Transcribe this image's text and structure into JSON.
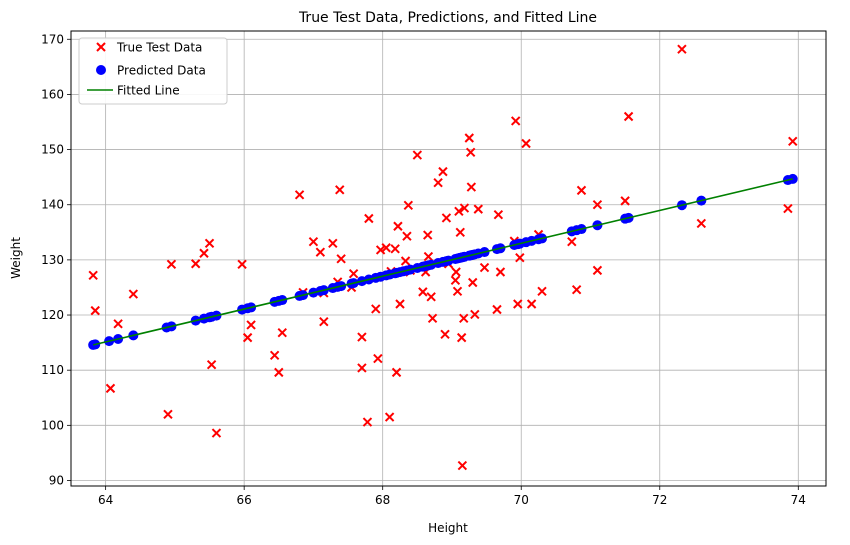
{
  "chart_data": {
    "type": "scatter",
    "title": "True Test Data, Predictions, and Fitted Line",
    "xlabel": "Height",
    "ylabel": "Weight",
    "xlim": [
      63.5,
      74.4
    ],
    "ylim": [
      89,
      171.5
    ],
    "xticks": [
      64,
      66,
      68,
      70,
      72,
      74
    ],
    "yticks": [
      90,
      100,
      110,
      120,
      130,
      140,
      150,
      160,
      170
    ],
    "grid": true,
    "legend_position": "upper-left",
    "legend": [
      {
        "label": "True Test Data",
        "marker": "x",
        "color": "#ff0000"
      },
      {
        "label": "Predicted Data",
        "marker": "circle",
        "color": "#0000ff"
      },
      {
        "label": "Fitted Line",
        "marker": "line",
        "color": "#008000"
      }
    ],
    "series": [
      {
        "name": "True Test Data",
        "kind": "x-marker",
        "color": "#ff0000",
        "points": [
          [
            63.82,
            127.2
          ],
          [
            63.85,
            120.8
          ],
          [
            64.07,
            106.7
          ],
          [
            64.18,
            118.4
          ],
          [
            64.4,
            123.8
          ],
          [
            64.9,
            102.0
          ],
          [
            64.95,
            129.2
          ],
          [
            65.3,
            129.3
          ],
          [
            65.42,
            131.2
          ],
          [
            65.5,
            133.0
          ],
          [
            65.53,
            111.0
          ],
          [
            65.6,
            98.6
          ],
          [
            65.97,
            129.2
          ],
          [
            66.05,
            115.9
          ],
          [
            66.1,
            118.2
          ],
          [
            66.44,
            112.7
          ],
          [
            66.5,
            109.6
          ],
          [
            66.55,
            116.8
          ],
          [
            66.8,
            141.8
          ],
          [
            66.85,
            124.1
          ],
          [
            67.0,
            133.3
          ],
          [
            67.1,
            131.4
          ],
          [
            67.15,
            118.8
          ],
          [
            67.15,
            124.0
          ],
          [
            67.28,
            133.0
          ],
          [
            67.35,
            126.0
          ],
          [
            67.38,
            142.7
          ],
          [
            67.4,
            130.2
          ],
          [
            67.55,
            125.0
          ],
          [
            67.58,
            127.5
          ],
          [
            67.7,
            116.0
          ],
          [
            67.7,
            110.4
          ],
          [
            67.78,
            100.6
          ],
          [
            67.8,
            137.5
          ],
          [
            67.9,
            121.1
          ],
          [
            67.93,
            112.1
          ],
          [
            67.97,
            131.8
          ],
          [
            68.05,
            132.2
          ],
          [
            68.1,
            101.5
          ],
          [
            68.12,
            127.9
          ],
          [
            68.18,
            132.0
          ],
          [
            68.2,
            109.6
          ],
          [
            68.22,
            136.1
          ],
          [
            68.25,
            122.0
          ],
          [
            68.3,
            127.8
          ],
          [
            68.33,
            129.8
          ],
          [
            68.35,
            134.3
          ],
          [
            68.37,
            139.9
          ],
          [
            68.4,
            128.1
          ],
          [
            68.5,
            149.0
          ],
          [
            68.58,
            124.2
          ],
          [
            68.62,
            127.8
          ],
          [
            68.65,
            134.5
          ],
          [
            68.66,
            130.6
          ],
          [
            68.7,
            123.3
          ],
          [
            68.72,
            119.4
          ],
          [
            68.8,
            144.0
          ],
          [
            68.87,
            146.0
          ],
          [
            68.9,
            116.5
          ],
          [
            68.92,
            137.6
          ],
          [
            68.95,
            129.3
          ],
          [
            69.05,
            126.3
          ],
          [
            69.06,
            127.8
          ],
          [
            69.08,
            124.3
          ],
          [
            69.1,
            138.8
          ],
          [
            69.12,
            135.0
          ],
          [
            69.14,
            115.9
          ],
          [
            69.15,
            92.7
          ],
          [
            69.17,
            119.4
          ],
          [
            69.18,
            139.4
          ],
          [
            69.25,
            152.1
          ],
          [
            69.27,
            149.5
          ],
          [
            69.28,
            143.2
          ],
          [
            69.3,
            125.9
          ],
          [
            69.33,
            120.1
          ],
          [
            69.38,
            139.2
          ],
          [
            69.47,
            128.6
          ],
          [
            69.65,
            121.0
          ],
          [
            69.67,
            138.2
          ],
          [
            69.7,
            127.8
          ],
          [
            69.9,
            133.4
          ],
          [
            69.92,
            155.2
          ],
          [
            69.95,
            122.0
          ],
          [
            69.98,
            130.4
          ],
          [
            70.07,
            151.1
          ],
          [
            70.15,
            122.0
          ],
          [
            70.25,
            134.6
          ],
          [
            70.3,
            124.3
          ],
          [
            70.73,
            133.3
          ],
          [
            70.8,
            124.6
          ],
          [
            70.87,
            142.6
          ],
          [
            71.1,
            128.1
          ],
          [
            71.1,
            140.0
          ],
          [
            71.5,
            140.7
          ],
          [
            71.55,
            156.0
          ],
          [
            72.32,
            168.2
          ],
          [
            72.6,
            136.6
          ],
          [
            73.85,
            139.3
          ],
          [
            73.92,
            151.5
          ]
        ]
      },
      {
        "name": "Predicted Data",
        "kind": "circle",
        "color": "#0000ff",
        "x": [
          63.82,
          63.85,
          64.05,
          64.18,
          64.4,
          64.88,
          64.95,
          65.3,
          65.42,
          65.5,
          65.53,
          65.6,
          65.97,
          66.05,
          66.1,
          66.44,
          66.5,
          66.55,
          66.8,
          66.85,
          67.0,
          67.1,
          67.15,
          67.28,
          67.35,
          67.4,
          67.55,
          67.58,
          67.7,
          67.8,
          67.9,
          67.97,
          68.05,
          68.1,
          68.18,
          68.2,
          68.25,
          68.3,
          68.35,
          68.4,
          68.5,
          68.58,
          68.62,
          68.66,
          68.7,
          68.8,
          68.87,
          68.92,
          68.95,
          69.05,
          69.08,
          69.1,
          69.12,
          69.15,
          69.18,
          69.25,
          69.28,
          69.3,
          69.33,
          69.38,
          69.47,
          69.65,
          69.7,
          69.9,
          69.95,
          69.98,
          70.07,
          70.15,
          70.25,
          70.3,
          70.73,
          70.8,
          70.87,
          71.1,
          71.5,
          71.55,
          72.32,
          72.6,
          73.85,
          73.92
        ],
        "fit": {
          "slope": 2.98,
          "intercept": -75.6
        }
      },
      {
        "name": "Fitted Line",
        "kind": "line",
        "color": "#008000",
        "x": [
          63.82,
          73.92
        ]
      }
    ]
  }
}
